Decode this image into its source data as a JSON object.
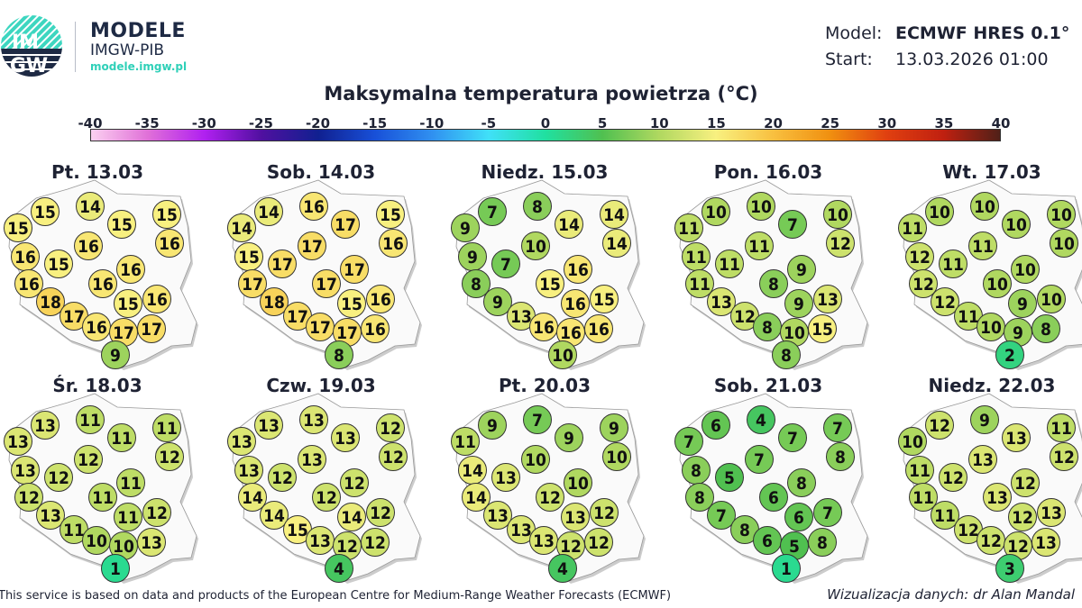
{
  "brand": {
    "logo_text": "IMGW",
    "name": "MODELE",
    "org": "IMGW-PIB",
    "url": "modele.imgw.pl",
    "accent": "#2fd0b8"
  },
  "meta": {
    "model_label": "Model:",
    "model_value": "ECMWF HRES 0.1°",
    "start_label": "Start:",
    "start_value": "13.03.2026 01:00"
  },
  "title": "Maksymalna temperatura powietrza (°C)",
  "legend": {
    "ticks": [
      "-40",
      "-35",
      "-30",
      "-25",
      "-20",
      "-15",
      "-10",
      "-5",
      "0",
      "5",
      "10",
      "15",
      "20",
      "25",
      "30",
      "35",
      "40"
    ],
    "stops": [
      "#fbd0f0",
      "#e070d8",
      "#b020f0",
      "#5010a0",
      "#102090",
      "#1850d8",
      "#3090f0",
      "#40e0f8",
      "#20e0a0",
      "#50c050",
      "#b0d860",
      "#f8f080",
      "#f8c040",
      "#f09010",
      "#e04010",
      "#c02010",
      "#502018"
    ]
  },
  "days": [
    {
      "label": "Pt. 13.03",
      "values": [
        15,
        14,
        15,
        15,
        15,
        16,
        16,
        15,
        16,
        16,
        16,
        16,
        15,
        16,
        18,
        17,
        16,
        17,
        17,
        9
      ]
    },
    {
      "label": "Sob. 14.03",
      "values": [
        14,
        16,
        14,
        17,
        15,
        17,
        15,
        17,
        16,
        17,
        17,
        17,
        15,
        16,
        18,
        17,
        17,
        17,
        16,
        8
      ]
    },
    {
      "label": "Niedz. 15.03",
      "values": [
        7,
        8,
        9,
        14,
        14,
        10,
        9,
        7,
        14,
        16,
        8,
        15,
        16,
        15,
        9,
        13,
        16,
        16,
        16,
        10
      ]
    },
    {
      "label": "Pon. 16.03",
      "values": [
        10,
        10,
        11,
        7,
        10,
        11,
        11,
        11,
        12,
        9,
        11,
        8,
        9,
        13,
        13,
        12,
        8,
        10,
        15,
        8
      ]
    },
    {
      "label": "Wt. 17.03",
      "values": [
        10,
        10,
        11,
        10,
        10,
        11,
        12,
        11,
        10,
        10,
        12,
        10,
        9,
        10,
        12,
        11,
        10,
        9,
        8,
        2
      ]
    },
    {
      "label": "Śr. 18.03",
      "values": [
        13,
        11,
        13,
        11,
        11,
        12,
        13,
        12,
        12,
        11,
        12,
        11,
        11,
        12,
        13,
        11,
        10,
        10,
        13,
        1
      ]
    },
    {
      "label": "Czw. 19.03",
      "values": [
        13,
        13,
        13,
        13,
        12,
        13,
        13,
        12,
        12,
        12,
        14,
        12,
        14,
        12,
        14,
        15,
        13,
        12,
        12,
        4
      ]
    },
    {
      "label": "Pt. 20.03",
      "values": [
        9,
        7,
        11,
        9,
        9,
        10,
        14,
        13,
        10,
        10,
        14,
        12,
        13,
        12,
        13,
        13,
        13,
        12,
        12,
        4
      ]
    },
    {
      "label": "Sob. 21.03",
      "values": [
        6,
        4,
        7,
        7,
        7,
        7,
        8,
        5,
        8,
        8,
        8,
        6,
        6,
        7,
        7,
        8,
        6,
        5,
        8,
        1
      ]
    },
    {
      "label": "Niedz. 22.03",
      "values": [
        12,
        9,
        10,
        13,
        11,
        13,
        11,
        12,
        12,
        12,
        11,
        13,
        12,
        13,
        11,
        12,
        12,
        12,
        13,
        3
      ]
    }
  ],
  "footer": {
    "source": "This service is based on data and products of the European Centre for Medium-Range Weather Forecasts (ECMWF)",
    "credit": "Wizualizacja danych: dr Alan Mandal"
  }
}
